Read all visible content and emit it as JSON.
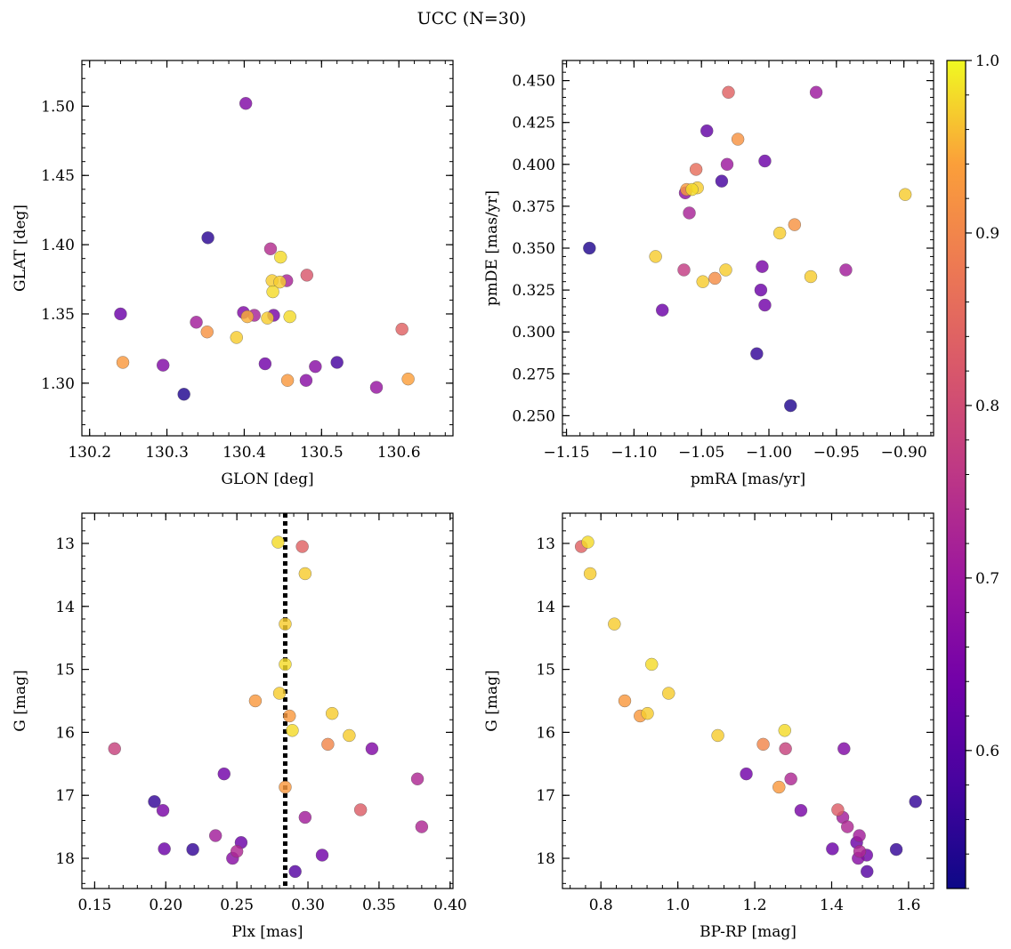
{
  "figure": {
    "title": "UCC (N=30)"
  },
  "colorbar": {
    "min": 0.52,
    "max": 1.0,
    "ticks": [
      0.6,
      0.7,
      0.8,
      0.9,
      1.0
    ],
    "tick_labels": [
      "0.6",
      "0.7",
      "0.8",
      "0.9",
      "1.0"
    ],
    "colormap": "plasma"
  },
  "chart_data": [
    {
      "type": "scatter",
      "xlabel": "GLON [deg]",
      "ylabel": "GLAT [deg]",
      "xlim": [
        130.19,
        130.67
      ],
      "ylim": [
        1.262,
        1.533
      ],
      "xticks": [
        130.2,
        130.3,
        130.4,
        130.5,
        130.6
      ],
      "xtick_labels": [
        "130.2",
        "130.3",
        "130.4",
        "130.5",
        "130.6"
      ],
      "yticks": [
        1.3,
        1.35,
        1.4,
        1.45,
        1.5
      ],
      "ytick_labels": [
        "1.30",
        "1.35",
        "1.40",
        "1.45",
        "1.50"
      ],
      "y_inverted": false,
      "points": [
        {
          "x": 130.402,
          "y": 1.502,
          "c": 0.66
        },
        {
          "x": 130.353,
          "y": 1.405,
          "c": 0.55
        },
        {
          "x": 130.434,
          "y": 1.397,
          "c": 0.74
        },
        {
          "x": 130.447,
          "y": 1.391,
          "c": 0.98
        },
        {
          "x": 130.481,
          "y": 1.378,
          "c": 0.82
        },
        {
          "x": 130.436,
          "y": 1.374,
          "c": 0.97
        },
        {
          "x": 130.446,
          "y": 1.373,
          "c": 0.97
        },
        {
          "x": 130.455,
          "y": 1.374,
          "c": 0.72
        },
        {
          "x": 130.437,
          "y": 1.366,
          "c": 0.98
        },
        {
          "x": 130.399,
          "y": 1.351,
          "c": 0.66
        },
        {
          "x": 130.413,
          "y": 1.349,
          "c": 0.72
        },
        {
          "x": 130.404,
          "y": 1.348,
          "c": 0.95
        },
        {
          "x": 130.438,
          "y": 1.349,
          "c": 0.65
        },
        {
          "x": 130.459,
          "y": 1.348,
          "c": 0.98
        },
        {
          "x": 130.43,
          "y": 1.347,
          "c": 0.97
        },
        {
          "x": 130.24,
          "y": 1.35,
          "c": 0.63
        },
        {
          "x": 130.338,
          "y": 1.344,
          "c": 0.71
        },
        {
          "x": 130.352,
          "y": 1.337,
          "c": 0.92
        },
        {
          "x": 130.39,
          "y": 1.333,
          "c": 0.97
        },
        {
          "x": 130.604,
          "y": 1.339,
          "c": 0.84
        },
        {
          "x": 130.243,
          "y": 1.315,
          "c": 0.93
        },
        {
          "x": 130.295,
          "y": 1.313,
          "c": 0.66
        },
        {
          "x": 130.427,
          "y": 1.314,
          "c": 0.64
        },
        {
          "x": 130.492,
          "y": 1.312,
          "c": 0.67
        },
        {
          "x": 130.52,
          "y": 1.315,
          "c": 0.58
        },
        {
          "x": 130.456,
          "y": 1.302,
          "c": 0.93
        },
        {
          "x": 130.48,
          "y": 1.302,
          "c": 0.67
        },
        {
          "x": 130.612,
          "y": 1.303,
          "c": 0.94
        },
        {
          "x": 130.571,
          "y": 1.297,
          "c": 0.69
        },
        {
          "x": 130.322,
          "y": 1.292,
          "c": 0.54
        }
      ]
    },
    {
      "type": "scatter",
      "xlabel": "pmRA [mas/yr]",
      "ylabel": "pmDE [mas/yr]",
      "xlim": [
        -1.153,
        -0.878
      ],
      "ylim": [
        0.238,
        0.462
      ],
      "xticks": [
        -1.15,
        -1.1,
        -1.05,
        -1.0,
        -0.95,
        -0.9
      ],
      "xtick_labels": [
        "−1.15",
        "−1.10",
        "−1.05",
        "−1.00",
        "−0.95",
        "−0.90"
      ],
      "yticks": [
        0.25,
        0.275,
        0.3,
        0.325,
        0.35,
        0.375,
        0.4,
        0.425,
        0.45
      ],
      "ytick_labels": [
        "0.250",
        "0.275",
        "0.300",
        "0.325",
        "0.350",
        "0.375",
        "0.400",
        "0.425",
        "0.450"
      ],
      "y_inverted": false,
      "points": [
        {
          "x": -1.03,
          "y": 0.443,
          "c": 0.84
        },
        {
          "x": -0.965,
          "y": 0.443,
          "c": 0.7
        },
        {
          "x": -1.046,
          "y": 0.42,
          "c": 0.62
        },
        {
          "x": -1.023,
          "y": 0.415,
          "c": 0.92
        },
        {
          "x": -1.003,
          "y": 0.402,
          "c": 0.63
        },
        {
          "x": -1.031,
          "y": 0.4,
          "c": 0.7
        },
        {
          "x": -1.054,
          "y": 0.397,
          "c": 0.86
        },
        {
          "x": -1.035,
          "y": 0.39,
          "c": 0.58
        },
        {
          "x": -1.053,
          "y": 0.386,
          "c": 0.97
        },
        {
          "x": -1.057,
          "y": 0.385,
          "c": 0.98
        },
        {
          "x": -1.061,
          "y": 0.385,
          "c": 0.93
        },
        {
          "x": -1.062,
          "y": 0.383,
          "c": 0.68
        },
        {
          "x": -0.899,
          "y": 0.382,
          "c": 0.97
        },
        {
          "x": -1.059,
          "y": 0.371,
          "c": 0.72
        },
        {
          "x": -0.981,
          "y": 0.364,
          "c": 0.92
        },
        {
          "x": -0.992,
          "y": 0.359,
          "c": 0.97
        },
        {
          "x": -1.133,
          "y": 0.35,
          "c": 0.54
        },
        {
          "x": -1.084,
          "y": 0.345,
          "c": 0.97
        },
        {
          "x": -1.005,
          "y": 0.339,
          "c": 0.65
        },
        {
          "x": -1.063,
          "y": 0.337,
          "c": 0.77
        },
        {
          "x": -1.032,
          "y": 0.337,
          "c": 0.97
        },
        {
          "x": -0.943,
          "y": 0.337,
          "c": 0.71
        },
        {
          "x": -0.969,
          "y": 0.333,
          "c": 0.97
        },
        {
          "x": -1.04,
          "y": 0.332,
          "c": 0.91
        },
        {
          "x": -1.049,
          "y": 0.33,
          "c": 0.97
        },
        {
          "x": -1.006,
          "y": 0.325,
          "c": 0.63
        },
        {
          "x": -1.003,
          "y": 0.316,
          "c": 0.64
        },
        {
          "x": -1.079,
          "y": 0.313,
          "c": 0.63
        },
        {
          "x": -1.009,
          "y": 0.287,
          "c": 0.56
        },
        {
          "x": -0.984,
          "y": 0.256,
          "c": 0.54
        }
      ]
    },
    {
      "type": "scatter",
      "xlabel": "Plx [mas]",
      "ylabel": "G [mag]",
      "xlim": [
        0.141,
        0.402
      ],
      "ylim": [
        18.48,
        12.52
      ],
      "xticks": [
        0.15,
        0.2,
        0.25,
        0.3,
        0.35,
        0.4
      ],
      "xtick_labels": [
        "0.15",
        "0.20",
        "0.25",
        "0.30",
        "0.35",
        "0.40"
      ],
      "yticks": [
        13,
        14,
        15,
        16,
        17,
        18
      ],
      "ytick_labels": [
        "13",
        "14",
        "15",
        "16",
        "17",
        "18"
      ],
      "y_inverted": true,
      "vline": 0.284,
      "points": [
        {
          "x": 0.279,
          "y": 12.98,
          "c": 0.98
        },
        {
          "x": 0.296,
          "y": 13.05,
          "c": 0.84
        },
        {
          "x": 0.298,
          "y": 13.48,
          "c": 0.97
        },
        {
          "x": 0.284,
          "y": 14.28,
          "c": 0.97
        },
        {
          "x": 0.284,
          "y": 14.92,
          "c": 0.98
        },
        {
          "x": 0.28,
          "y": 15.38,
          "c": 0.97
        },
        {
          "x": 0.263,
          "y": 15.5,
          "c": 0.93
        },
        {
          "x": 0.287,
          "y": 15.74,
          "c": 0.93
        },
        {
          "x": 0.317,
          "y": 15.7,
          "c": 0.97
        },
        {
          "x": 0.289,
          "y": 15.97,
          "c": 0.98
        },
        {
          "x": 0.329,
          "y": 16.05,
          "c": 0.97
        },
        {
          "x": 0.314,
          "y": 16.19,
          "c": 0.9
        },
        {
          "x": 0.164,
          "y": 16.26,
          "c": 0.78
        },
        {
          "x": 0.345,
          "y": 16.26,
          "c": 0.66
        },
        {
          "x": 0.241,
          "y": 16.66,
          "c": 0.64
        },
        {
          "x": 0.377,
          "y": 16.74,
          "c": 0.73
        },
        {
          "x": 0.284,
          "y": 16.87,
          "c": 0.93
        },
        {
          "x": 0.192,
          "y": 17.1,
          "c": 0.56
        },
        {
          "x": 0.198,
          "y": 17.24,
          "c": 0.65
        },
        {
          "x": 0.337,
          "y": 17.23,
          "c": 0.83
        },
        {
          "x": 0.298,
          "y": 17.35,
          "c": 0.71
        },
        {
          "x": 0.38,
          "y": 17.5,
          "c": 0.73
        },
        {
          "x": 0.235,
          "y": 17.64,
          "c": 0.71
        },
        {
          "x": 0.253,
          "y": 17.75,
          "c": 0.63
        },
        {
          "x": 0.199,
          "y": 17.85,
          "c": 0.63
        },
        {
          "x": 0.219,
          "y": 17.86,
          "c": 0.56
        },
        {
          "x": 0.25,
          "y": 17.89,
          "c": 0.73
        },
        {
          "x": 0.31,
          "y": 17.95,
          "c": 0.64
        },
        {
          "x": 0.247,
          "y": 18.0,
          "c": 0.67
        },
        {
          "x": 0.291,
          "y": 18.21,
          "c": 0.6
        }
      ]
    },
    {
      "type": "scatter",
      "xlabel": "BP-RP [mag]",
      "ylabel": "G [mag]",
      "xlim": [
        0.7,
        1.665
      ],
      "ylim": [
        18.48,
        12.52
      ],
      "xticks": [
        0.8,
        1.0,
        1.2,
        1.4,
        1.6
      ],
      "xtick_labels": [
        "0.8",
        "1.0",
        "1.2",
        "1.4",
        "1.6"
      ],
      "yticks": [
        13,
        14,
        15,
        16,
        17,
        18
      ],
      "ytick_labels": [
        "13",
        "14",
        "15",
        "16",
        "17",
        "18"
      ],
      "y_inverted": true,
      "points": [
        {
          "x": 0.766,
          "y": 12.98,
          "c": 0.98
        },
        {
          "x": 0.749,
          "y": 13.05,
          "c": 0.84
        },
        {
          "x": 0.772,
          "y": 13.48,
          "c": 0.97
        },
        {
          "x": 0.835,
          "y": 14.28,
          "c": 0.97
        },
        {
          "x": 0.932,
          "y": 14.92,
          "c": 0.98
        },
        {
          "x": 0.976,
          "y": 15.38,
          "c": 0.97
        },
        {
          "x": 0.862,
          "y": 15.5,
          "c": 0.93
        },
        {
          "x": 0.902,
          "y": 15.74,
          "c": 0.93
        },
        {
          "x": 0.921,
          "y": 15.7,
          "c": 0.97
        },
        {
          "x": 1.278,
          "y": 15.97,
          "c": 0.98
        },
        {
          "x": 1.104,
          "y": 16.05,
          "c": 0.97
        },
        {
          "x": 1.222,
          "y": 16.19,
          "c": 0.9
        },
        {
          "x": 1.28,
          "y": 16.26,
          "c": 0.78
        },
        {
          "x": 1.432,
          "y": 16.26,
          "c": 0.66
        },
        {
          "x": 1.178,
          "y": 16.66,
          "c": 0.64
        },
        {
          "x": 1.294,
          "y": 16.74,
          "c": 0.73
        },
        {
          "x": 1.263,
          "y": 16.87,
          "c": 0.93
        },
        {
          "x": 1.618,
          "y": 17.1,
          "c": 0.56
        },
        {
          "x": 1.32,
          "y": 17.24,
          "c": 0.65
        },
        {
          "x": 1.416,
          "y": 17.23,
          "c": 0.83
        },
        {
          "x": 1.429,
          "y": 17.35,
          "c": 0.71
        },
        {
          "x": 1.441,
          "y": 17.5,
          "c": 0.73
        },
        {
          "x": 1.472,
          "y": 17.64,
          "c": 0.71
        },
        {
          "x": 1.465,
          "y": 17.75,
          "c": 0.63
        },
        {
          "x": 1.402,
          "y": 17.85,
          "c": 0.63
        },
        {
          "x": 1.568,
          "y": 17.86,
          "c": 0.56
        },
        {
          "x": 1.473,
          "y": 17.89,
          "c": 0.73
        },
        {
          "x": 1.491,
          "y": 17.95,
          "c": 0.64
        },
        {
          "x": 1.469,
          "y": 18.0,
          "c": 0.67
        },
        {
          "x": 1.492,
          "y": 18.21,
          "c": 0.6
        }
      ]
    }
  ]
}
